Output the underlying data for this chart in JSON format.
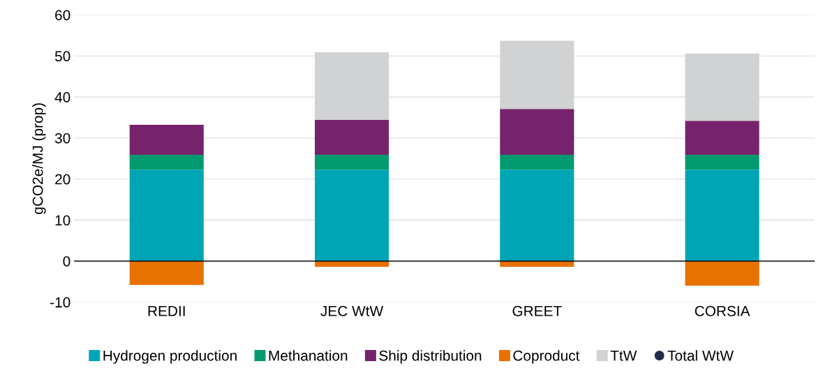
{
  "chart_data": {
    "type": "bar",
    "stacked": true,
    "ylabel": "gCO2e/MJ (prop)",
    "categories": [
      "REDII",
      "JEC WtW",
      "GREET",
      "CORSIA"
    ],
    "series": [
      {
        "name": "Hydrogen production",
        "color": "#00a5b5",
        "values": [
          22.3,
          22.3,
          22.3,
          22.3
        ]
      },
      {
        "name": "Methanation",
        "color": "#009a6e",
        "values": [
          3.6,
          3.6,
          3.6,
          3.6
        ]
      },
      {
        "name": "Ship distribution",
        "color": "#76236c",
        "values": [
          7.3,
          8.5,
          11.2,
          8.3
        ]
      },
      {
        "name": "Coproduct",
        "color": "#e87200",
        "values": [
          -5.8,
          -1.4,
          -1.4,
          -6.0
        ]
      },
      {
        "name": "TtW",
        "color": "#d0d2d3",
        "values": [
          null,
          16.5,
          16.6,
          16.4
        ]
      },
      {
        "name": "Total WtW",
        "type": "scatter",
        "marker": "circle",
        "color": "#1f2d4a",
        "values": [
          null,
          null,
          null,
          null
        ]
      }
    ],
    "ylim": [
      -10,
      60
    ],
    "yticks": [
      -10,
      0,
      10,
      20,
      30,
      40,
      50,
      60
    ],
    "grid": "y",
    "legend": "bottom"
  }
}
